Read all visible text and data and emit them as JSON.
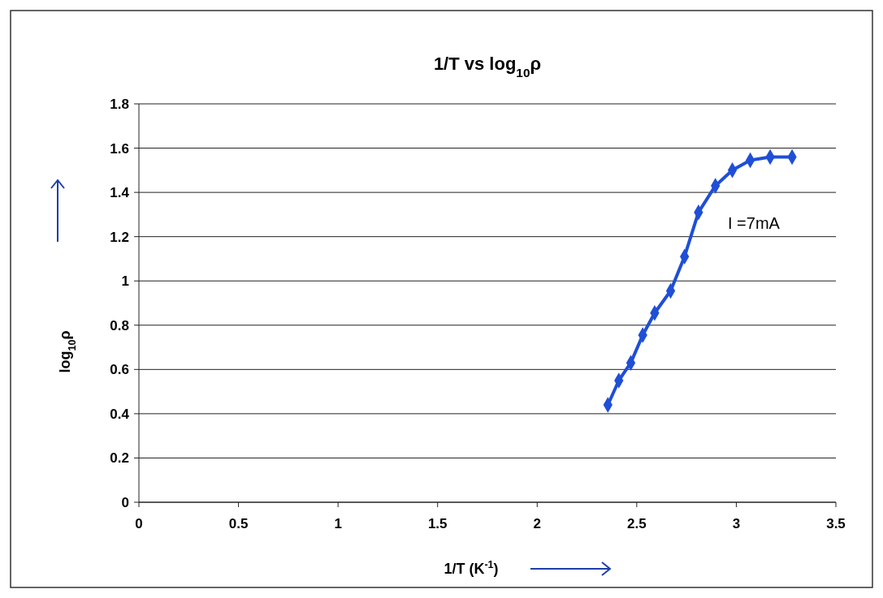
{
  "chart_data": {
    "type": "line",
    "title": "1/T vs log$_{10}$ρ",
    "xlabel": "1/T (K$^{-1}$)",
    "ylabel": "log$_{10}$ρ",
    "annotations": [
      "I =7mA"
    ],
    "series": [
      {
        "color": "#1f4fd6",
        "x": [
          2.355,
          2.41,
          2.47,
          2.53,
          2.59,
          2.67,
          2.74,
          2.81,
          2.895,
          2.98,
          3.07,
          3.17,
          3.28
        ],
        "values": [
          0.44,
          0.55,
          0.63,
          0.755,
          0.855,
          0.955,
          1.11,
          1.31,
          1.43,
          1.5,
          1.545,
          1.56,
          1.56
        ]
      }
    ],
    "xlim": [
      0,
      3.5
    ],
    "xticks": [
      0,
      0.5,
      1,
      1.5,
      2,
      2.5,
      3,
      3.5
    ],
    "ylim": [
      0,
      1.8
    ],
    "yticks": [
      0,
      0.2,
      0.4,
      0.6,
      0.8,
      1,
      1.2,
      1.4,
      1.6,
      1.8
    ],
    "grid": "y",
    "marker": "diamond",
    "line_style": "solid"
  }
}
